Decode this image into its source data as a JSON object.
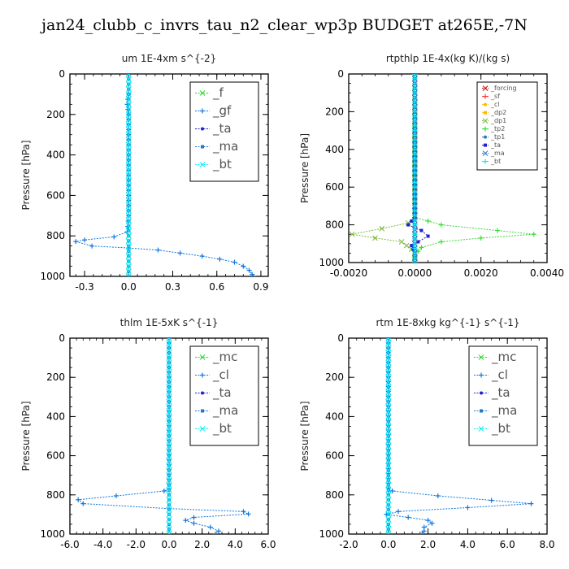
{
  "page": {
    "title": "jan24_clubb_c_invrs_tau_n2_clear_wp3p  BUDGET at265E,-7N"
  },
  "colors": {
    "forcing": "#cc0000",
    "sf": "#ff3333",
    "cl_yellow": "#ffbb00",
    "dp2": "#ffbb00",
    "dp1": "#77bb33",
    "tp2": "#33dd33",
    "tp1": "#3377bb",
    "f": "#22dd22",
    "mc": "#22dd22",
    "gf": "#1177dd",
    "cl": "#1177dd",
    "ta": "#2222cc",
    "ma": "#2277cc",
    "bt": "#00eeff"
  },
  "chart_data": [
    {
      "id": "um",
      "type": "line",
      "title": "um   1E-4xm  s^{-2}",
      "ylabel": "Pressure  [hPa]",
      "ylim": [
        1000,
        0
      ],
      "xlim": [
        -0.4,
        0.95
      ],
      "xticks": [
        -0.3,
        0.0,
        0.3,
        0.6,
        0.9
      ],
      "xtick_labels": [
        "-0.3",
        "0.0",
        "0.3",
        "0.6",
        "0.9"
      ],
      "yticks": [
        0,
        200,
        400,
        600,
        800,
        1000
      ],
      "legend": {
        "placement": "top-right",
        "entries": [
          "_f",
          "_gf",
          "_ta",
          "_ma",
          "_bt"
        ],
        "font_size": 15
      },
      "series": [
        {
          "name": "_f",
          "color": "#22dd22",
          "points": [
            [
              0.0,
              0
            ],
            [
              0.0,
              200
            ],
            [
              0.0,
              400
            ],
            [
              0.0,
              600
            ],
            [
              0.0,
              800
            ],
            [
              0.0,
              1000
            ]
          ]
        },
        {
          "name": "_gf",
          "color": "#1177dd",
          "points": [
            [
              0.0,
              100
            ],
            [
              -0.01,
              150
            ],
            [
              0.0,
              200
            ],
            [
              0.0,
              300
            ],
            [
              0.0,
              500
            ],
            [
              0.0,
              700
            ],
            [
              -0.01,
              780
            ],
            [
              -0.1,
              805
            ],
            [
              -0.3,
              820
            ],
            [
              -0.36,
              828
            ],
            [
              -0.25,
              850
            ],
            [
              0.0,
              860
            ],
            [
              0.2,
              870
            ],
            [
              0.35,
              885
            ],
            [
              0.5,
              900
            ],
            [
              0.62,
              915
            ],
            [
              0.72,
              930
            ],
            [
              0.78,
              950
            ],
            [
              0.82,
              970
            ],
            [
              0.84,
              990
            ],
            [
              0.85,
              1000
            ]
          ]
        },
        {
          "name": "_ta",
          "color": "#2222cc",
          "points": [
            [
              0.0,
              0
            ],
            [
              0.0,
              1000
            ]
          ]
        },
        {
          "name": "_ma",
          "color": "#2277cc",
          "points": [
            [
              0.0,
              0
            ],
            [
              0.0,
              1000
            ]
          ]
        },
        {
          "name": "_bt",
          "color": "#00eeff",
          "points": [
            [
              0.0,
              0
            ],
            [
              0.0,
              1000
            ]
          ]
        }
      ]
    },
    {
      "id": "rtpthlp",
      "type": "line",
      "title": "rtpthlp   1E-4x(kg K)/(kg s)",
      "ylabel": "Pressure  [hPa]",
      "ylim": [
        1000,
        0
      ],
      "xlim": [
        -0.002,
        0.004
      ],
      "xticks": [
        -0.002,
        0.0,
        0.002,
        0.004
      ],
      "xtick_labels": [
        "-0.0020",
        "0.0000",
        "0.0020",
        "0.0040"
      ],
      "yticks": [
        0,
        200,
        400,
        600,
        800,
        1000
      ],
      "legend": {
        "placement": "top-right",
        "entries": [
          "_forcing",
          "_sf",
          "_cl",
          "_dp2",
          "_dp1",
          "_tp2",
          "_tp1",
          "_ta",
          "_ma",
          "_bt"
        ],
        "font_size": 8
      },
      "series": [
        {
          "name": "_forcing",
          "color": "#cc0000",
          "points": [
            [
              0.0,
              0
            ],
            [
              0.0,
              1000
            ]
          ]
        },
        {
          "name": "_sf",
          "color": "#ff3333",
          "points": [
            [
              0.0,
              0
            ],
            [
              0.0,
              1000
            ]
          ]
        },
        {
          "name": "_cl",
          "color": "#ffbb00",
          "points": [
            [
              0.0,
              0
            ],
            [
              0.0,
              1000
            ]
          ]
        },
        {
          "name": "_dp2",
          "color": "#ffbb00",
          "points": [
            [
              0.0,
              0
            ],
            [
              0.0,
              1000
            ]
          ]
        },
        {
          "name": "_dp1",
          "color": "#77bb33",
          "points": [
            [
              0.0,
              0
            ],
            [
              0.0,
              760
            ],
            [
              -0.0002,
              790
            ],
            [
              -0.001,
              820
            ],
            [
              -0.0019,
              850
            ],
            [
              -0.0012,
              870
            ],
            [
              -0.0004,
              890
            ],
            [
              -0.0001,
              930
            ],
            [
              0.0,
              960
            ],
            [
              0.0,
              1000
            ]
          ]
        },
        {
          "name": "_tp2",
          "color": "#33dd33",
          "points": [
            [
              0.0,
              0
            ],
            [
              0.0,
              760
            ],
            [
              0.0008,
              800
            ],
            [
              0.0025,
              830
            ],
            [
              0.0036,
              850
            ],
            [
              0.002,
              870
            ],
            [
              0.0008,
              890
            ],
            [
              0.0002,
              920
            ],
            [
              0.0,
              960
            ],
            [
              0.0,
              1000
            ]
          ]
        },
        {
          "name": "_tp1",
          "color": "#3377bb",
          "points": [
            [
              0.0,
              0
            ],
            [
              0.0,
              1000
            ]
          ]
        },
        {
          "name": "_ta",
          "color": "#2222cc",
          "points": [
            [
              0.0,
              0
            ],
            [
              0.0,
              760
            ],
            [
              -0.0002,
              800
            ],
            [
              0.0002,
              830
            ],
            [
              0.0004,
              860
            ],
            [
              0.0001,
              890
            ],
            [
              -0.0001,
              910
            ],
            [
              0.0,
              950
            ],
            [
              0.0,
              1000
            ]
          ]
        },
        {
          "name": "_ma",
          "color": "#2277cc",
          "points": [
            [
              0.0,
              0
            ],
            [
              0.0,
              1000
            ]
          ]
        },
        {
          "name": "_bt",
          "color": "#00eeff",
          "points": [
            [
              0.0,
              0
            ],
            [
              0.0,
              1000
            ]
          ]
        }
      ]
    },
    {
      "id": "thlm",
      "type": "line",
      "title": "thlm   1E-5xK  s^{-1}",
      "ylabel": "Pressure  [hPa]",
      "ylim": [
        1000,
        0
      ],
      "xlim": [
        -6.0,
        6.0
      ],
      "xticks": [
        -6.0,
        -4.0,
        -2.0,
        0.0,
        2.0,
        4.0,
        6.0
      ],
      "xtick_labels": [
        "-6.0",
        "-4.0",
        "-2.0",
        "0.0",
        "2.0",
        "4.0",
        "6.0"
      ],
      "yticks": [
        0,
        200,
        400,
        600,
        800,
        1000
      ],
      "legend": {
        "placement": "top-right",
        "entries": [
          "_mc",
          "_cl",
          "_ta",
          "_ma",
          "_bt"
        ],
        "font_size": 15
      },
      "series": [
        {
          "name": "_mc",
          "color": "#22dd22",
          "points": [
            [
              0.0,
              0
            ],
            [
              0.0,
              1000
            ]
          ]
        },
        {
          "name": "_cl",
          "color": "#1177dd",
          "points": [
            [
              0.0,
              0
            ],
            [
              0.0,
              770
            ],
            [
              -0.3,
              780
            ],
            [
              -3.2,
              805
            ],
            [
              -5.5,
              825
            ],
            [
              -5.2,
              845
            ],
            [
              0.0,
              870
            ],
            [
              4.5,
              885
            ],
            [
              4.8,
              898
            ],
            [
              1.5,
              915
            ],
            [
              1.0,
              930
            ],
            [
              1.5,
              945
            ],
            [
              2.5,
              965
            ],
            [
              3.0,
              985
            ],
            [
              2.8,
              1000
            ]
          ]
        },
        {
          "name": "_ta",
          "color": "#2222cc",
          "points": [
            [
              0.0,
              0
            ],
            [
              0.0,
              1000
            ]
          ]
        },
        {
          "name": "_ma",
          "color": "#2277cc",
          "points": [
            [
              0.0,
              0
            ],
            [
              0.0,
              1000
            ]
          ]
        },
        {
          "name": "_bt",
          "color": "#00eeff",
          "points": [
            [
              0.0,
              0
            ],
            [
              0.0,
              1000
            ]
          ]
        }
      ]
    },
    {
      "id": "rtm",
      "type": "line",
      "title": "rtm   1E-8xkg  kg^{-1}  s^{-1}",
      "ylabel": "Pressure  [hPa]",
      "ylim": [
        1000,
        0
      ],
      "xlim": [
        -2.0,
        8.0
      ],
      "xticks": [
        -2.0,
        0.0,
        2.0,
        4.0,
        6.0,
        8.0
      ],
      "xtick_labels": [
        "-2.0",
        "0.0",
        "2.0",
        "4.0",
        "6.0",
        "8.0"
      ],
      "yticks": [
        0,
        200,
        400,
        600,
        800,
        1000
      ],
      "legend": {
        "placement": "top-right",
        "entries": [
          "_mc",
          "_cl",
          "_ta",
          "_ma",
          "_bt"
        ],
        "font_size": 15
      },
      "series": [
        {
          "name": "_mc",
          "color": "#22dd22",
          "points": [
            [
              0.0,
              0
            ],
            [
              0.0,
              1000
            ]
          ]
        },
        {
          "name": "_cl",
          "color": "#1177dd",
          "points": [
            [
              0.0,
              0
            ],
            [
              0.0,
              765
            ],
            [
              0.2,
              780
            ],
            [
              2.5,
              805
            ],
            [
              5.2,
              828
            ],
            [
              7.2,
              845
            ],
            [
              4.0,
              865
            ],
            [
              0.5,
              885
            ],
            [
              -0.1,
              900
            ],
            [
              1.0,
              915
            ],
            [
              2.0,
              930
            ],
            [
              2.2,
              945
            ],
            [
              1.8,
              965
            ],
            [
              1.8,
              985
            ],
            [
              1.7,
              1000
            ]
          ]
        },
        {
          "name": "_ta",
          "color": "#2222cc",
          "points": [
            [
              0.0,
              0
            ],
            [
              0.0,
              1000
            ]
          ]
        },
        {
          "name": "_ma",
          "color": "#2277cc",
          "points": [
            [
              0.0,
              0
            ],
            [
              0.0,
              1000
            ]
          ]
        },
        {
          "name": "_bt",
          "color": "#00eeff",
          "points": [
            [
              0.0,
              0
            ],
            [
              0.0,
              1000
            ]
          ]
        }
      ]
    }
  ]
}
